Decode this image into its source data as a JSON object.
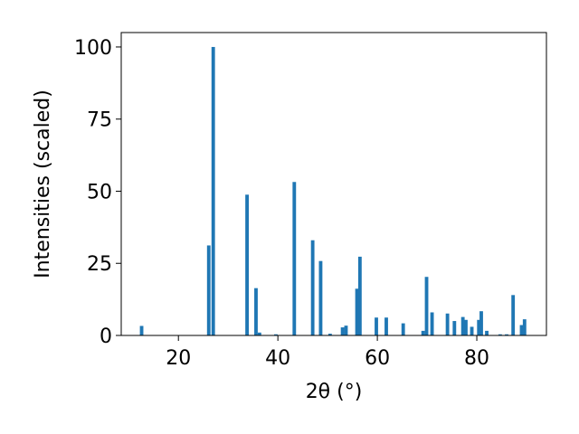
{
  "chart_data": {
    "type": "bar",
    "title": "",
    "xlabel": "2θ (°)",
    "ylabel": "Intensities (scaled)",
    "xlim": [
      8.5,
      94.0
    ],
    "ylim": [
      0,
      105
    ],
    "xticks": [
      20,
      40,
      60,
      80
    ],
    "yticks": [
      0,
      25,
      50,
      75,
      100
    ],
    "grid": false,
    "bar_color": "#1f77b4",
    "bar_width": 0.7,
    "points": [
      {
        "x": 12.6,
        "y": 3.3
      },
      {
        "x": 26.1,
        "y": 31.2
      },
      {
        "x": 27.0,
        "y": 100.0
      },
      {
        "x": 33.8,
        "y": 48.8
      },
      {
        "x": 35.6,
        "y": 16.4
      },
      {
        "x": 36.3,
        "y": 1.0
      },
      {
        "x": 39.6,
        "y": 0.4
      },
      {
        "x": 43.3,
        "y": 53.2
      },
      {
        "x": 47.0,
        "y": 33.0
      },
      {
        "x": 48.6,
        "y": 25.8
      },
      {
        "x": 50.5,
        "y": 0.6
      },
      {
        "x": 53.0,
        "y": 2.8
      },
      {
        "x": 53.7,
        "y": 3.4
      },
      {
        "x": 55.9,
        "y": 16.2
      },
      {
        "x": 56.5,
        "y": 27.3
      },
      {
        "x": 59.8,
        "y": 6.2
      },
      {
        "x": 61.8,
        "y": 6.2
      },
      {
        "x": 65.2,
        "y": 4.2
      },
      {
        "x": 69.2,
        "y": 1.6
      },
      {
        "x": 69.9,
        "y": 20.3
      },
      {
        "x": 71.0,
        "y": 8.0
      },
      {
        "x": 74.1,
        "y": 7.6
      },
      {
        "x": 75.5,
        "y": 5.0
      },
      {
        "x": 77.2,
        "y": 6.4
      },
      {
        "x": 77.8,
        "y": 5.4
      },
      {
        "x": 79.0,
        "y": 3.0
      },
      {
        "x": 80.4,
        "y": 5.4
      },
      {
        "x": 80.9,
        "y": 8.4
      },
      {
        "x": 82.0,
        "y": 1.6
      },
      {
        "x": 84.7,
        "y": 0.4
      },
      {
        "x": 86.0,
        "y": 0.4
      },
      {
        "x": 87.3,
        "y": 14.0
      },
      {
        "x": 89.0,
        "y": 3.6
      },
      {
        "x": 89.6,
        "y": 5.6
      }
    ]
  }
}
